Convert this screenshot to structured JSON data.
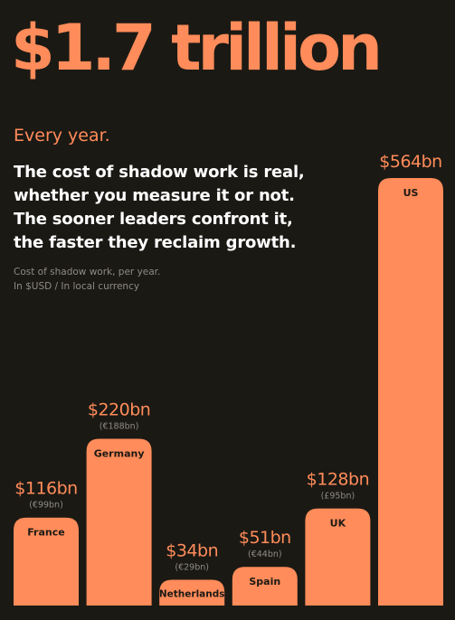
{
  "colors": {
    "background": "#1b1914",
    "accent": "#ff8c5a",
    "bar_label": "#1b1914",
    "secondary_text": "#8f8b84"
  },
  "headline": "$1.7 trillion",
  "subhead": "Every year.",
  "body": "The cost of shadow work is real, whether you measure it or not. The sooner leaders confront it, the faster they reclaim growth.",
  "note": {
    "line1": "Cost of shadow work, per year.",
    "line2": "In $USD / In local currency"
  },
  "chart_data": {
    "type": "bar",
    "unit": "USD billions",
    "categories": [
      "France",
      "Germany",
      "Netherlands",
      "Spain",
      "UK",
      "US"
    ],
    "values": [
      116,
      220,
      34,
      51,
      128,
      564
    ],
    "value_labels": [
      "$116bn",
      "$220bn",
      "$34bn",
      "$51bn",
      "$128bn",
      "$564bn"
    ],
    "local_labels": [
      "(€99bn)",
      "(€188bn)",
      "(€29bn)",
      "(€44bn)",
      "(£95bn)",
      ""
    ],
    "ylim": [
      0,
      564
    ],
    "grid": false,
    "legend": "none"
  }
}
